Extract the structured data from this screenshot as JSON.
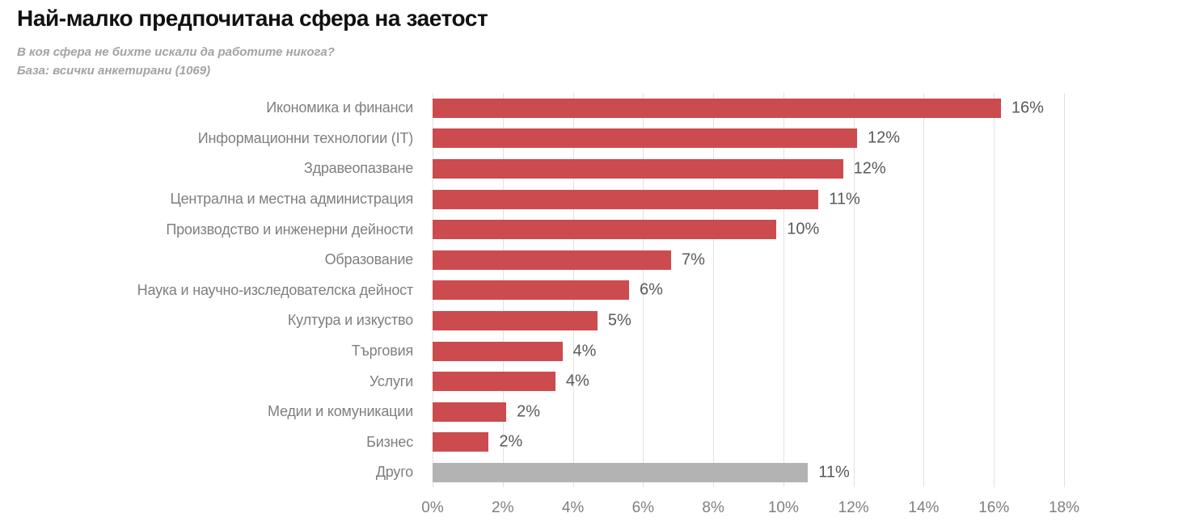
{
  "header": {
    "title": "Най-малко предпочитана сфера на заетост",
    "subtitle": "В коя сфера не бихте искали да работите никога?",
    "base_note": "База: всички анкетирани (1069)"
  },
  "colors": {
    "bar_red": "#cc4b4f",
    "bar_gray": "#b3b3b3",
    "gridline": "#e2e2e6",
    "title_text": "#111111",
    "subtitle_text": "#a3a3a3",
    "category_text": "#7f7f7f",
    "value_text": "#595959",
    "axis_text": "#7f7f7f"
  },
  "chart_data": {
    "type": "bar",
    "orientation": "horizontal",
    "title": "Най-малко предпочитана сфера на заетост",
    "subtitle": "В коя сфера не бихте искали да работите никога?",
    "base_note": "База: всички анкетирани (1069)",
    "categories": [
      "Икономика и финанси",
      "Информационни технологии (IT)",
      "Здравеопазване",
      "Централна и местна администрация",
      "Производство и инженерни дейности",
      "Образование",
      "Наука и научно-изследователска дейност",
      "Култура и изкуство",
      "Търговия",
      "Услуги",
      "Медии и комуникации",
      "Бизнес",
      "Друго"
    ],
    "values": [
      16.2,
      12.1,
      11.7,
      11.0,
      9.8,
      6.8,
      5.6,
      4.7,
      3.7,
      3.5,
      2.1,
      1.6,
      10.7
    ],
    "data_labels": [
      "16%",
      "12%",
      "12%",
      "11%",
      "10%",
      "7%",
      "6%",
      "5%",
      "4%",
      "4%",
      "2%",
      "2%",
      "11%"
    ],
    "bar_colors": [
      "#cc4b4f",
      "#cc4b4f",
      "#cc4b4f",
      "#cc4b4f",
      "#cc4b4f",
      "#cc4b4f",
      "#cc4b4f",
      "#cc4b4f",
      "#cc4b4f",
      "#cc4b4f",
      "#cc4b4f",
      "#cc4b4f",
      "#b3b3b3"
    ],
    "xlim": [
      0,
      18
    ],
    "x_tick_values": [
      0,
      2,
      4,
      6,
      8,
      10,
      12,
      14,
      16,
      18
    ],
    "x_tick_labels": [
      "0%",
      "2%",
      "4%",
      "6%",
      "8%",
      "10%",
      "12%",
      "14%",
      "16%",
      "18%"
    ],
    "grid": true,
    "legend": false
  }
}
